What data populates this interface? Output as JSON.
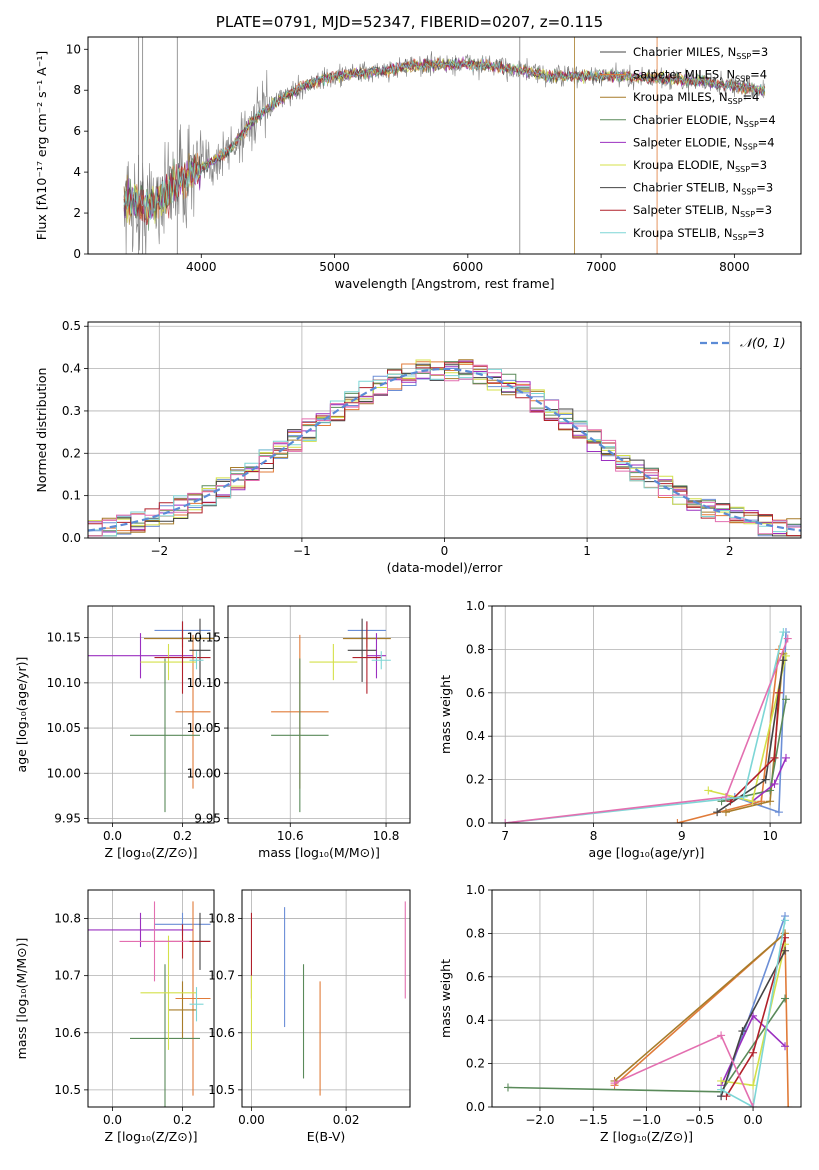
{
  "title": "PLATE=0791, MJD=52347, FIBERID=0207, z=0.115",
  "colors": [
    "#6b8ed6",
    "#e07b39",
    "#a77c2a",
    "#5a8a5a",
    "#9b30c0",
    "#d4e04a",
    "#444444",
    "#b0202a",
    "#7dd6d6",
    "#e36fb0",
    "#808080"
  ],
  "chart_data": [
    {
      "id": "spectrum",
      "type": "line",
      "xlabel": "wavelength [Angstrom, rest frame]",
      "ylabel": "Flux [fλ10⁻¹⁷ erg cm⁻² s⁻¹ A⁻¹]",
      "xlim": [
        3150,
        8500
      ],
      "ylim": [
        0,
        10.6
      ],
      "xticks": [
        "4000",
        "5000",
        "6000",
        "7000",
        "8000"
      ],
      "yticks": [
        "0",
        "2",
        "4",
        "6",
        "8",
        "10"
      ],
      "grid": false,
      "legend": "upper right",
      "continuum": [
        [
          3420,
          2.6
        ],
        [
          3600,
          2.3
        ],
        [
          3800,
          3.4
        ],
        [
          4000,
          4.2
        ],
        [
          4200,
          5.0
        ],
        [
          4400,
          6.6
        ],
        [
          4600,
          7.6
        ],
        [
          4800,
          8.3
        ],
        [
          5000,
          8.7
        ],
        [
          5300,
          8.9
        ],
        [
          5600,
          9.2
        ],
        [
          6000,
          9.3
        ],
        [
          6400,
          9.0
        ],
        [
          6600,
          8.7
        ],
        [
          7000,
          8.7
        ],
        [
          7400,
          8.6
        ],
        [
          7800,
          8.4
        ],
        [
          8200,
          8.0
        ]
      ],
      "series": [
        {
          "name": "Chabrier MILES, N_SSP=3",
          "label": "Chabrier MILES, N",
          "sub": "SSP",
          "val": "=3"
        },
        {
          "name": "Salpeter MILES, N_SSP=4",
          "label": "Salpeter MILES, N",
          "sub": "SSP",
          "val": "=4"
        },
        {
          "name": "Kroupa MILES, N_SSP=4",
          "label": "Kroupa MILES, N",
          "sub": "SSP",
          "val": "=4"
        },
        {
          "name": "Chabrier ELODIE, N_SSP=4",
          "label": "Chabrier ELODIE, N",
          "sub": "SSP",
          "val": "=4"
        },
        {
          "name": "Salpeter ELODIE, N_SSP=4",
          "label": "Salpeter ELODIE, N",
          "sub": "SSP",
          "val": "=4"
        },
        {
          "name": "Kroupa ELODIE, N_SSP=3",
          "label": "Kroupa ELODIE, N",
          "sub": "SSP",
          "val": "=3"
        },
        {
          "name": "Chabrier STELIB, N_SSP=3",
          "label": "Chabrier STELIB, N",
          "sub": "SSP",
          "val": "=3"
        },
        {
          "name": "Salpeter STELIB, N_SSP=3",
          "label": "Salpeter STELIB, N",
          "sub": "SSP",
          "val": "=3"
        },
        {
          "name": "Kroupa STELIB, N_SSP=3",
          "label": "Kroupa STELIB, N",
          "sub": "SSP",
          "val": "=3"
        }
      ]
    },
    {
      "id": "residuals",
      "type": "line",
      "xlabel": "(data-model)/error",
      "ylabel": "Normed distribution",
      "xlim": [
        -2.5,
        2.5
      ],
      "ylim": [
        0,
        0.51
      ],
      "xticks": [
        "−2",
        "−1",
        "0",
        "1",
        "2"
      ],
      "yticks": [
        "0.0",
        "0.1",
        "0.2",
        "0.3",
        "0.4",
        "0.5"
      ],
      "grid": true,
      "legend": "upper right",
      "legend_label": "𝒩(0, 1)",
      "bin_width": 0.1
    },
    {
      "id": "age-vs-z",
      "type": "scatter",
      "xlabel": "Z [log₁₀(Z/Z⊙)]",
      "ylabel": "age  [log₁₀(age/yr)]",
      "xlim": [
        -0.07,
        0.29
      ],
      "ylim": [
        9.945,
        10.185
      ],
      "xticks": [
        "0.0",
        "0.2"
      ],
      "yticks": [
        "9.95",
        "10.00",
        "10.05",
        "10.10",
        "10.15"
      ],
      "grid": true,
      "points": [
        {
          "x": 0.2,
          "y": 10.158,
          "xerr": 0.08,
          "yerr": 0.01
        },
        {
          "x": 0.23,
          "y": 10.068,
          "xerr": 0.05,
          "yerr": 0.085
        },
        {
          "x": 0.2,
          "y": 10.149,
          "xerr": 0.11,
          "yerr": 0.01
        },
        {
          "x": 0.15,
          "y": 10.042,
          "xerr": 0.1,
          "yerr": 0.085
        },
        {
          "x": 0.08,
          "y": 10.13,
          "xerr": 0.15,
          "yerr": 0.025
        },
        {
          "x": 0.16,
          "y": 10.123,
          "xerr": 0.08,
          "yerr": 0.02
        },
        {
          "x": 0.25,
          "y": 10.136,
          "xerr": 0.03,
          "yerr": 0.035
        },
        {
          "x": 0.2,
          "y": 10.128,
          "xerr": 0.08,
          "yerr": 0.04
        },
        {
          "x": 0.24,
          "y": 10.125,
          "xerr": 0.02,
          "yerr": 0.01
        }
      ]
    },
    {
      "id": "age-vs-mass",
      "type": "scatter",
      "xlabel": "mass [log₁₀(M/M⊙)]",
      "ylabel": "",
      "xlim": [
        10.47,
        10.85
      ],
      "ylim": [
        9.945,
        10.185
      ],
      "xticks": [
        "10.6",
        "10.8"
      ],
      "yticks": [
        "9.95",
        "10.00",
        "10.05",
        "10.10",
        "10.15"
      ],
      "grid": true,
      "points": [
        {
          "x": 10.76,
          "y": 10.158,
          "xerr": 0.04,
          "yerr": 0.01
        },
        {
          "x": 10.62,
          "y": 10.068,
          "xerr": 0.06,
          "yerr": 0.085
        },
        {
          "x": 10.76,
          "y": 10.149,
          "xerr": 0.05,
          "yerr": 0.01
        },
        {
          "x": 10.62,
          "y": 10.042,
          "xerr": 0.06,
          "yerr": 0.085
        },
        {
          "x": 10.78,
          "y": 10.13,
          "xerr": 0.02,
          "yerr": 0.025
        },
        {
          "x": 10.69,
          "y": 10.123,
          "xerr": 0.05,
          "yerr": 0.02
        },
        {
          "x": 10.75,
          "y": 10.136,
          "xerr": 0.03,
          "yerr": 0.035
        },
        {
          "x": 10.76,
          "y": 10.128,
          "xerr": 0.03,
          "yerr": 0.04
        },
        {
          "x": 10.79,
          "y": 10.125,
          "xerr": 0.02,
          "yerr": 0.01
        }
      ]
    },
    {
      "id": "mass-vs-z",
      "type": "scatter",
      "xlabel": "Z [log₁₀(Z/Z⊙)]",
      "ylabel": "mass [log₁₀(M/M⊙)]",
      "xlim": [
        -0.07,
        0.29
      ],
      "ylim": [
        10.47,
        10.85
      ],
      "xticks": [
        "0.0",
        "0.2"
      ],
      "yticks": [
        "10.5",
        "10.6",
        "10.7",
        "10.8"
      ],
      "grid": true,
      "points": [
        {
          "x": 0.2,
          "y": 10.79,
          "xerr": 0.08,
          "yerr": 0.02
        },
        {
          "x": 0.23,
          "y": 10.66,
          "xerr": 0.05,
          "yerr": 0.17
        },
        {
          "x": 0.2,
          "y": 10.64,
          "xerr": 0.04,
          "yerr": 0.05
        },
        {
          "x": 0.15,
          "y": 10.59,
          "xerr": 0.1,
          "yerr": 0.13
        },
        {
          "x": 0.08,
          "y": 10.78,
          "xerr": 0.15,
          "yerr": 0.03
        },
        {
          "x": 0.16,
          "y": 10.67,
          "xerr": 0.08,
          "yerr": 0.1
        },
        {
          "x": 0.25,
          "y": 10.76,
          "xerr": 0.03,
          "yerr": 0.05
        },
        {
          "x": 0.2,
          "y": 10.76,
          "xerr": 0.08,
          "yerr": 0.03
        },
        {
          "x": 0.24,
          "y": 10.65,
          "xerr": 0.02,
          "yerr": 0.03
        },
        {
          "x": 0.12,
          "y": 10.76,
          "xerr": 0.1,
          "yerr": 0.07
        }
      ]
    },
    {
      "id": "mass-vs-ebv",
      "type": "scatter",
      "xlabel": "E(B-V)",
      "ylabel": "",
      "xlim": [
        -0.002,
        0.0335
      ],
      "ylim": [
        10.47,
        10.85
      ],
      "xticks": [
        "0.00",
        "0.02"
      ],
      "yticks": [
        "10.5",
        "10.6",
        "10.7",
        "10.8"
      ],
      "grid": true,
      "vlines": [
        {
          "x": 0.0,
          "y0": 10.66,
          "y1": 10.81
        },
        {
          "x": 0.0,
          "y0": 10.57,
          "y1": 10.7
        },
        {
          "x": 0.007,
          "y0": 10.61,
          "y1": 10.82
        },
        {
          "x": 0.011,
          "y0": 10.52,
          "y1": 10.72
        },
        {
          "x": 0.0145,
          "y0": 10.49,
          "y1": 10.69
        },
        {
          "x": 0.0325,
          "y0": 10.66,
          "y1": 10.83
        }
      ]
    },
    {
      "id": "weight-vs-age",
      "type": "line",
      "xlabel": "age  [log₁₀(age/yr)]",
      "ylabel": "mass weight",
      "xlim": [
        6.85,
        10.35
      ],
      "ylim": [
        0,
        1.0
      ],
      "xticks": [
        "7",
        "8",
        "9",
        "10"
      ],
      "yticks": [
        "0.0",
        "0.2",
        "0.4",
        "0.6",
        "0.8",
        "1.0"
      ],
      "grid": true,
      "series": [
        {
          "pts": [
            [
              9.6,
              0.12
            ],
            [
              10.1,
              0.05
            ],
            [
              10.18,
              0.88
            ]
          ]
        },
        {
          "pts": [
            [
              8.95,
              0.0
            ],
            [
              9.9,
              0.1
            ],
            [
              10.1,
              0.8
            ]
          ]
        },
        {
          "pts": [
            [
              9.5,
              0.05
            ],
            [
              10.0,
              0.1
            ],
            [
              10.15,
              0.78
            ]
          ]
        },
        {
          "pts": [
            [
              9.45,
              0.1
            ],
            [
              10.0,
              0.15
            ],
            [
              10.18,
              0.57
            ]
          ]
        },
        {
          "pts": [
            [
              9.8,
              0.1
            ],
            [
              10.05,
              0.18
            ],
            [
              10.18,
              0.3
            ]
          ]
        },
        {
          "pts": [
            [
              9.3,
              0.15
            ],
            [
              9.8,
              0.1
            ],
            [
              10.18,
              0.77
            ]
          ]
        },
        {
          "pts": [
            [
              9.4,
              0.05
            ],
            [
              9.95,
              0.2
            ],
            [
              10.15,
              0.75
            ]
          ]
        },
        {
          "pts": [
            [
              9.55,
              0.1
            ],
            [
              10.05,
              0.3
            ],
            [
              10.1,
              0.6
            ]
          ]
        },
        {
          "pts": [
            [
              7.0,
              0.0
            ],
            [
              9.7,
              0.12
            ],
            [
              10.15,
              0.88
            ]
          ]
        },
        {
          "pts": [
            [
              7.0,
              0.0
            ],
            [
              9.5,
              0.12
            ],
            [
              10.2,
              0.85
            ]
          ]
        }
      ]
    },
    {
      "id": "weight-vs-z",
      "type": "line",
      "xlabel": "Z [log₁₀(Z/Z⊙)]",
      "ylabel": "mass weight",
      "xlim": [
        -2.45,
        0.45
      ],
      "ylim": [
        0,
        1.0
      ],
      "xticks": [
        "−2.0",
        "−1.5",
        "−1.0",
        "−0.5",
        "0.0"
      ],
      "yticks": [
        "0.0",
        "0.2",
        "0.4",
        "0.6",
        "0.8",
        "1.0"
      ],
      "grid": true,
      "series": [
        {
          "pts": [
            [
              -0.3,
              0.05
            ],
            [
              0.3,
              0.88
            ]
          ]
        },
        {
          "pts": [
            [
              -1.3,
              0.1
            ],
            [
              0.3,
              0.8
            ],
            [
              0.33,
              0.0
            ]
          ]
        },
        {
          "pts": [
            [
              -1.3,
              0.12
            ],
            [
              0.3,
              0.8
            ]
          ]
        },
        {
          "pts": [
            [
              -2.3,
              0.09
            ],
            [
              -0.3,
              0.07
            ],
            [
              0.3,
              0.5
            ]
          ]
        },
        {
          "pts": [
            [
              -0.3,
              0.1
            ],
            [
              0.0,
              0.42
            ],
            [
              0.3,
              0.28
            ]
          ]
        },
        {
          "pts": [
            [
              -0.3,
              0.12
            ],
            [
              0.0,
              0.1
            ],
            [
              0.3,
              0.75
            ]
          ]
        },
        {
          "pts": [
            [
              -0.3,
              0.05
            ],
            [
              -0.1,
              0.35
            ],
            [
              0.3,
              0.72
            ]
          ]
        },
        {
          "pts": [
            [
              -0.25,
              0.05
            ],
            [
              0.0,
              0.25
            ],
            [
              0.3,
              0.78
            ]
          ]
        },
        {
          "pts": [
            [
              -0.3,
              0.08
            ],
            [
              0.0,
              0.0
            ],
            [
              0.3,
              0.86
            ]
          ]
        },
        {
          "pts": [
            [
              -1.3,
              0.11
            ],
            [
              -0.3,
              0.33
            ],
            [
              0.0,
              0.0
            ]
          ]
        }
      ]
    }
  ]
}
